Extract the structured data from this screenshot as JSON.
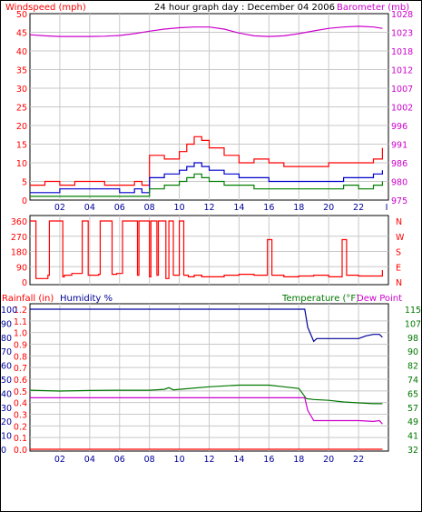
{
  "header": {
    "title": "24 hour graph day : December 04 2006",
    "left_label": "Windspeed (mph)",
    "right_label": "Barometer (mb)"
  },
  "wind_dir_axis": {
    "left_ticks": [
      "360",
      "270",
      "180",
      "90",
      "0"
    ],
    "right_letters": [
      "N",
      "W",
      "S",
      "E",
      "N"
    ]
  },
  "bottom_header": {
    "rainfall_label": "Rainfall (in)",
    "humidity_label": "Humidity %",
    "temperature_label": "Temperature (°F)",
    "dewpoint_label": "Dew Point"
  },
  "colors": {
    "windspeed": "#ff0000",
    "wind_avg": "#0000cc",
    "wind_low": "#008000",
    "barometer": "#cc00cc",
    "wind_direction": "#ff0000",
    "humidity": "#000099",
    "temperature": "#007700",
    "dewpoint": "#cc00cc",
    "rainfall": "#ff0000",
    "grid": "#c8c8c8"
  },
  "chart_data": [
    {
      "type": "line",
      "name": "windspeed-barometer",
      "x_ticks": [
        "02",
        "04",
        "06",
        "08",
        "10",
        "12",
        "14",
        "16",
        "18",
        "20",
        "22",
        "I"
      ],
      "xlim": [
        0,
        24
      ],
      "ylim_left": [
        0,
        50
      ],
      "y_ticks_left": [
        "50",
        "45",
        "40",
        "35",
        "30",
        "25",
        "20",
        "15",
        "10",
        "5",
        "0"
      ],
      "ylim_right": [
        975,
        1028
      ],
      "y_ticks_right": [
        "1028",
        "1023",
        "1018",
        "1012",
        "1007",
        "1002",
        "996",
        "991",
        "986",
        "980",
        "975"
      ],
      "series": [
        {
          "key": "gust",
          "x": [
            0,
            1,
            2,
            3,
            4,
            5,
            6,
            7,
            7.5,
            8,
            9,
            10,
            10.5,
            11,
            11.5,
            12,
            13,
            14,
            15,
            16,
            17,
            18,
            19,
            20,
            21,
            22,
            23,
            23.6
          ],
          "values": [
            4,
            5,
            4,
            5,
            5,
            4,
            4,
            5,
            4,
            12,
            11,
            13,
            15,
            17,
            16,
            14,
            12,
            10,
            11,
            10,
            9,
            9,
            9,
            10,
            10,
            10,
            11,
            14
          ]
        },
        {
          "key": "avg",
          "x": [
            0,
            1,
            2,
            3,
            4,
            5,
            6,
            7,
            7.5,
            8,
            9,
            10,
            10.5,
            11,
            11.5,
            12,
            13,
            14,
            15,
            16,
            17,
            18,
            19,
            20,
            21,
            22,
            23,
            23.6
          ],
          "values": [
            2,
            2,
            3,
            3,
            3,
            3,
            2,
            3,
            2,
            6,
            7,
            8,
            9,
            10,
            9,
            8,
            7,
            6,
            6,
            5,
            5,
            5,
            5,
            5,
            6,
            6,
            7,
            8
          ]
        },
        {
          "key": "low",
          "x": [
            0,
            1,
            2,
            3,
            4,
            5,
            6,
            7,
            7.5,
            8,
            9,
            10,
            10.5,
            11,
            11.5,
            12,
            13,
            14,
            15,
            16,
            17,
            18,
            19,
            20,
            21,
            22,
            23,
            23.6
          ],
          "values": [
            1,
            1,
            1,
            1,
            1,
            1,
            1,
            1,
            1,
            3,
            4,
            5,
            6,
            7,
            6,
            5,
            4,
            4,
            3,
            3,
            3,
            3,
            3,
            3,
            4,
            3,
            4,
            5
          ]
        },
        {
          "key": "barometer",
          "x": [
            0,
            1,
            2,
            3,
            4,
            5,
            6,
            7,
            8,
            9,
            10,
            11,
            12,
            13,
            14,
            15,
            16,
            17,
            18,
            19,
            20,
            21,
            22,
            23,
            23.6
          ],
          "values": [
            1022,
            1021.7,
            1021.5,
            1021.5,
            1021.5,
            1021.6,
            1021.8,
            1022.3,
            1023,
            1023.6,
            1024,
            1024.2,
            1024.2,
            1023.6,
            1022.5,
            1021.7,
            1021.5,
            1021.7,
            1022.3,
            1023.1,
            1023.8,
            1024.2,
            1024.4,
            1024.2,
            1023.8
          ]
        }
      ]
    },
    {
      "type": "line",
      "name": "wind-direction",
      "ylim": [
        0,
        360
      ],
      "x": [
        0,
        0.3,
        0.4,
        1.2,
        1.3,
        1.5,
        2.2,
        2.3,
        2.8,
        3.5,
        3.6,
        3.9,
        4.6,
        4.7,
        5.4,
        5.5,
        5.8,
        6.2,
        6.3,
        7.2,
        7.3,
        7.6,
        8.0,
        8.1,
        8.3,
        8.5,
        8.6,
        8.9,
        9.1,
        9.3,
        9.6,
        10,
        10.3,
        10.6,
        11,
        11.5,
        12,
        13,
        14,
        15,
        15.8,
        15.9,
        16.1,
        16.2,
        17,
        18,
        19,
        20,
        20.8,
        20.9,
        21.1,
        21.2,
        22,
        23,
        23.6
      ],
      "values": [
        360,
        360,
        20,
        40,
        360,
        360,
        30,
        40,
        50,
        360,
        360,
        40,
        45,
        360,
        360,
        45,
        50,
        360,
        360,
        40,
        360,
        360,
        30,
        360,
        360,
        40,
        360,
        360,
        20,
        360,
        40,
        360,
        40,
        30,
        40,
        30,
        30,
        40,
        45,
        40,
        40,
        250,
        250,
        40,
        30,
        35,
        40,
        30,
        30,
        250,
        250,
        40,
        35,
        35,
        70
      ]
    },
    {
      "type": "line",
      "name": "rain-humidity-temperature",
      "ylim_rain": [
        0,
        1.2
      ],
      "y_ticks_rain": [
        "1.2",
        "1.1",
        "1.0",
        "0.9",
        "0.8",
        "0.7",
        "0.6",
        "0.5",
        "0.4",
        "0.3",
        "0.2",
        "0.1",
        "0.0"
      ],
      "ylim_humidity": [
        0,
        100
      ],
      "y_ticks_humidity": [
        "100",
        "90",
        "80",
        "70",
        "60",
        "50",
        "40",
        "30",
        "20",
        "10",
        "0"
      ],
      "ylim_temp": [
        32,
        115
      ],
      "y_ticks_temp": [
        "115",
        "107",
        "98",
        "90",
        "82",
        "74",
        "65",
        "57",
        "49",
        "41",
        "32"
      ],
      "series": [
        {
          "key": "humidity",
          "x": [
            0,
            18.4,
            18.6,
            19,
            19.2,
            20,
            21,
            22,
            22.5,
            23,
            23.4,
            23.6
          ],
          "values": [
            100,
            100,
            87,
            77,
            79,
            79,
            79,
            79,
            81,
            82,
            82,
            80
          ]
        },
        {
          "key": "temperature",
          "x": [
            0,
            2,
            4,
            6,
            8,
            9,
            9.3,
            9.6,
            10,
            12,
            14,
            16,
            17,
            18,
            18.5,
            19,
            20,
            21,
            22,
            23,
            23.6
          ],
          "values": [
            67,
            66.5,
            66.8,
            67,
            67,
            67.5,
            68.5,
            67.2,
            67.5,
            69,
            70,
            70,
            69,
            68,
            62,
            61.5,
            61,
            60,
            59.5,
            59,
            59
          ]
        },
        {
          "key": "dewpoint",
          "x": [
            0,
            18.4,
            18.6,
            19,
            20,
            21,
            22,
            23,
            23.4,
            23.6
          ],
          "values": [
            62.5,
            62.5,
            55,
            49,
            49,
            49,
            49,
            48.5,
            49,
            47
          ]
        },
        {
          "key": "rainfall",
          "x": [
            0,
            23.6
          ],
          "values": [
            0,
            0
          ]
        }
      ]
    }
  ]
}
